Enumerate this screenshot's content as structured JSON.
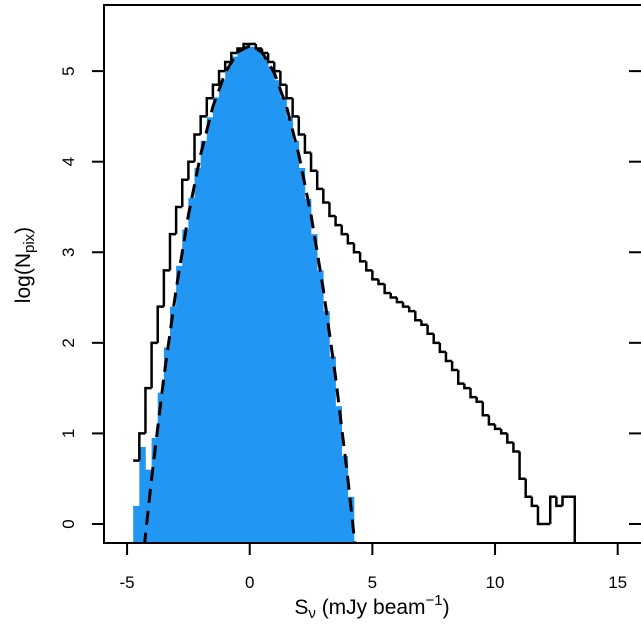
{
  "chart_data": {
    "type": "histogram",
    "xlabel": {
      "text": "S",
      "sub": "ν",
      "rest": " (mJy beam",
      "sup": "−1",
      "end": ")"
    },
    "ylabel": {
      "text": "log(N",
      "sub": "pix",
      "end": ")"
    },
    "xlim": [
      -5.94,
      15.95
    ],
    "ylim": [
      -0.21,
      5.73
    ],
    "xticks": [
      -5,
      0,
      5,
      10,
      15
    ],
    "yticks": [
      0,
      1,
      2,
      3,
      4,
      5
    ],
    "histograms": [
      {
        "style": "filled",
        "color": "#2196f3",
        "bins": [
          -4.75,
          -4.5,
          -4.25,
          -4,
          -3.75,
          -3.5,
          -3.25,
          -3,
          -2.75,
          -2.5,
          -2.25,
          -2,
          -1.75,
          -1.5,
          -1.25,
          -1,
          -0.75,
          -0.5,
          -0.25,
          0,
          0.25,
          0.5,
          0.75,
          1,
          1.25,
          1.5,
          1.75,
          2,
          2.25,
          2.5,
          2.75,
          3,
          3.25,
          3.5,
          3.75,
          4,
          4.25
        ],
        "values": [
          0.2,
          0.85,
          0.6,
          0.95,
          1.45,
          1.95,
          2.4,
          2.85,
          3.25,
          3.6,
          3.93,
          4.23,
          4.49,
          4.71,
          4.9,
          5.05,
          5.16,
          5.24,
          5.27,
          5.27,
          5.24,
          5.16,
          5.05,
          4.9,
          4.71,
          4.49,
          4.23,
          3.93,
          3.59,
          3.2,
          2.8,
          2.35,
          1.85,
          1.3,
          0.75,
          0.3
        ]
      },
      {
        "style": "step",
        "color": "#000000",
        "bins": [
          -4.75,
          -4.5,
          -4.25,
          -4,
          -3.75,
          -3.5,
          -3.25,
          -3,
          -2.75,
          -2.5,
          -2.25,
          -2,
          -1.75,
          -1.5,
          -1.25,
          -1,
          -0.75,
          -0.5,
          -0.25,
          0,
          0.25,
          0.5,
          0.75,
          1,
          1.25,
          1.5,
          1.75,
          2,
          2.25,
          2.5,
          2.75,
          3,
          3.25,
          3.5,
          3.75,
          4,
          4.25,
          4.5,
          4.75,
          5,
          5.25,
          5.5,
          5.75,
          6,
          6.25,
          6.5,
          6.75,
          7,
          7.25,
          7.5,
          7.75,
          8,
          8.25,
          8.5,
          8.75,
          9,
          9.25,
          9.5,
          9.75,
          10,
          10.25,
          10.5,
          10.75,
          11,
          11.25,
          11.5,
          11.75,
          12,
          12.25,
          12.5,
          12.75,
          13,
          13.25
        ],
        "values": [
          0.7,
          1.0,
          1.5,
          2.0,
          2.4,
          2.8,
          3.2,
          3.5,
          3.8,
          4.0,
          4.3,
          4.5,
          4.7,
          4.85,
          5.0,
          5.1,
          5.2,
          5.25,
          5.3,
          5.3,
          5.25,
          5.2,
          5.1,
          5.0,
          4.85,
          4.7,
          4.5,
          4.3,
          4.1,
          3.9,
          3.7,
          3.55,
          3.4,
          3.3,
          3.2,
          3.1,
          3.0,
          2.9,
          2.8,
          2.7,
          2.65,
          2.55,
          2.5,
          2.45,
          2.4,
          2.35,
          2.25,
          2.2,
          2.1,
          2.0,
          1.9,
          1.8,
          1.7,
          1.55,
          1.5,
          1.4,
          1.35,
          1.2,
          1.1,
          1.05,
          1.0,
          0.9,
          0.8,
          0.5,
          0.3,
          0.2,
          0.0,
          0.0,
          0.3,
          0.2,
          0.3,
          0.3
        ]
      }
    ],
    "curve": {
      "color": "#000000",
      "dashed": true,
      "x": [
        -4.3,
        -4.2,
        -4,
        -3.5,
        -3,
        -2.5,
        -2,
        -1.5,
        -1,
        -0.5,
        0,
        0.5,
        1,
        1.5,
        2,
        2.5,
        3,
        3.5,
        4,
        4.2,
        4.3
      ],
      "values": [
        -0.25,
        0.0,
        0.5,
        1.62,
        2.59,
        3.41,
        4.08,
        4.61,
        4.98,
        5.21,
        5.28,
        5.21,
        4.98,
        4.61,
        4.08,
        3.41,
        2.59,
        1.62,
        0.5,
        0.0,
        -0.25
      ]
    }
  }
}
